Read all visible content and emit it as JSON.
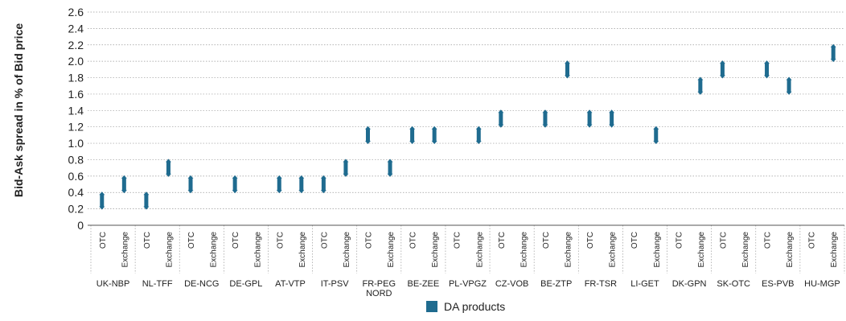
{
  "chart_data": {
    "type": "range",
    "ylabel": "Bid-Ask spread in % of Bid price",
    "ylim": [
      0,
      2.6
    ],
    "yticks": [
      "0",
      "0.2",
      "0.4",
      "0.6",
      "0.8",
      "1.0",
      "1.2",
      "1.4",
      "1.6",
      "1.8",
      "2.0",
      "2.2",
      "2.4",
      "2.6"
    ],
    "grid": true,
    "legend_position": "bottom-center",
    "series": [
      {
        "name": "DA products",
        "color": "#1f6b8f",
        "hubs": [
          {
            "label": [
              "UK-NBP"
            ],
            "otc": [
              0.2,
              0.4
            ],
            "exchange": [
              0.4,
              0.6
            ]
          },
          {
            "label": [
              "NL-TFF"
            ],
            "otc": [
              0.2,
              0.4
            ],
            "exchange": [
              0.6,
              0.8
            ]
          },
          {
            "label": [
              "DE-NCG"
            ],
            "otc": [
              0.4,
              0.6
            ],
            "exchange": null
          },
          {
            "label": [
              "DE-GPL"
            ],
            "otc": [
              0.4,
              0.6
            ],
            "exchange": null
          },
          {
            "label": [
              "AT-VTP"
            ],
            "otc": [
              0.4,
              0.6
            ],
            "exchange": [
              0.4,
              0.6
            ]
          },
          {
            "label": [
              "IT-PSV"
            ],
            "otc": [
              0.4,
              0.6
            ],
            "exchange": [
              0.6,
              0.8
            ]
          },
          {
            "label": [
              "FR-PEG",
              "NORD"
            ],
            "otc": [
              1.0,
              1.2
            ],
            "exchange": [
              0.6,
              0.8
            ]
          },
          {
            "label": [
              "BE-ZEE"
            ],
            "otc": [
              1.0,
              1.2
            ],
            "exchange": [
              1.0,
              1.2
            ]
          },
          {
            "label": [
              "PL-VPGZ"
            ],
            "otc": null,
            "exchange": [
              1.0,
              1.2
            ]
          },
          {
            "label": [
              "CZ-VOB"
            ],
            "otc": [
              1.2,
              1.4
            ],
            "exchange": null
          },
          {
            "label": [
              "BE-ZTP"
            ],
            "otc": [
              1.2,
              1.4
            ],
            "exchange": [
              1.8,
              2.0
            ]
          },
          {
            "label": [
              "FR-TSR"
            ],
            "otc": [
              1.2,
              1.4
            ],
            "exchange": [
              1.2,
              1.4
            ]
          },
          {
            "label": [
              "LI-GET"
            ],
            "otc": null,
            "exchange": [
              1.0,
              1.2
            ]
          },
          {
            "label": [
              "DK-GPN"
            ],
            "otc": null,
            "exchange": [
              1.6,
              1.8
            ]
          },
          {
            "label": [
              "SK-OTC"
            ],
            "otc": [
              1.8,
              2.0
            ],
            "exchange": null
          },
          {
            "label": [
              "ES-PVB"
            ],
            "otc": [
              1.8,
              2.0
            ],
            "exchange": [
              1.6,
              1.8
            ]
          },
          {
            "label": [
              "HU-MGP"
            ],
            "otc": null,
            "exchange": [
              2.0,
              2.2
            ]
          }
        ]
      }
    ],
    "sub_categories": [
      "OTC",
      "Exchange"
    ]
  }
}
